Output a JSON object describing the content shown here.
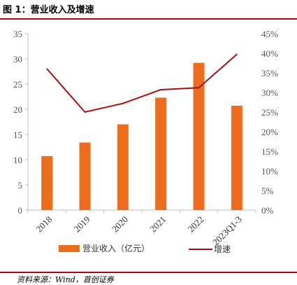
{
  "figure_title": "图 1：营业收入及增速",
  "source": "资料来源：Wind，首创证券",
  "chart_data": {
    "type": "bar",
    "categories": [
      "2018",
      "2019",
      "2020",
      "2021",
      "2022",
      "2023Q1-3"
    ],
    "series": [
      {
        "name": "营业收入（亿元）",
        "type": "bar",
        "axis": "left",
        "color": "#ed6d1c",
        "values": [
          10.7,
          13.4,
          17.0,
          22.3,
          29.2,
          20.7
        ]
      },
      {
        "name": "增速",
        "type": "line",
        "axis": "right",
        "color": "#a50f12",
        "values": [
          0.36,
          0.25,
          0.272,
          0.307,
          0.312,
          0.397
        ]
      }
    ],
    "y_left": {
      "lim": [
        0,
        35
      ],
      "ticks": [
        "0",
        "5",
        "10",
        "15",
        "20",
        "25",
        "30",
        "35"
      ]
    },
    "y_right": {
      "lim": [
        0,
        0.45
      ],
      "ticks": [
        "0%",
        "5%",
        "10%",
        "15%",
        "20%",
        "25%",
        "30%",
        "35%",
        "40%",
        "45%"
      ]
    },
    "grid": false,
    "legend_position": "bottom"
  }
}
